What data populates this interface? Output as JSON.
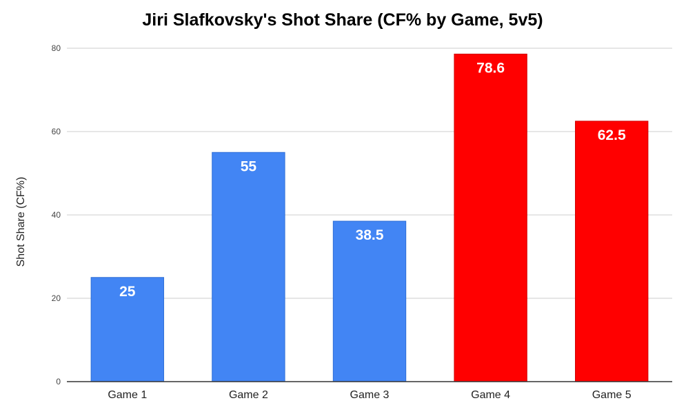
{
  "chart_data": {
    "type": "bar",
    "title": "Jiri Slafkovsky's Shot Share (CF% by Game, 5v5)",
    "xlabel": "",
    "ylabel": "Shot Share (CF%)",
    "categories": [
      "Game 1",
      "Game 2",
      "Game 3",
      "Game 4",
      "Game 5"
    ],
    "values": [
      25,
      55,
      38.5,
      78.6,
      62.5
    ],
    "data_labels": [
      "25",
      "55",
      "38.5",
      "78.6",
      "62.5"
    ],
    "bar_colors": [
      "#4285f4",
      "#4285f4",
      "#4285f4",
      "#ff0000",
      "#ff0000"
    ],
    "ylim": [
      0,
      80
    ],
    "yticks": [
      0,
      20,
      40,
      60,
      80
    ],
    "grid": true,
    "legend": "none"
  },
  "colors": {
    "gridline": "#cccccc",
    "axis": "#333333",
    "bar_outline_blue": "#2f6fd6",
    "bar_outline_red": "#d00000"
  }
}
